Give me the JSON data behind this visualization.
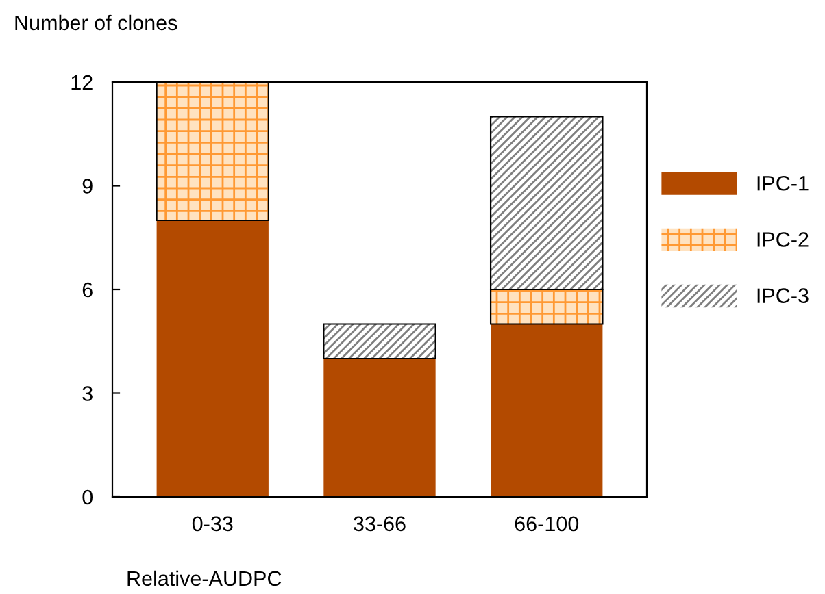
{
  "chart_data": {
    "type": "bar",
    "stacked": true,
    "ylabel": "Number of clones",
    "xlabel": "Relative-AUDPC",
    "categories": [
      "0-33",
      "33-66",
      "66-100"
    ],
    "series": [
      {
        "name": "IPC-1",
        "color": "#b34a00",
        "values": [
          8,
          4,
          5
        ]
      },
      {
        "name": "IPC-2",
        "color": "#ff9933",
        "values": [
          4,
          0,
          1
        ]
      },
      {
        "name": "IPC-3",
        "color": "#7f7f7f",
        "values": [
          0,
          1,
          5
        ]
      }
    ],
    "ylim": [
      0,
      12
    ],
    "yticks": [
      0,
      3,
      6,
      9,
      12
    ],
    "grid": false,
    "legend": "right"
  }
}
